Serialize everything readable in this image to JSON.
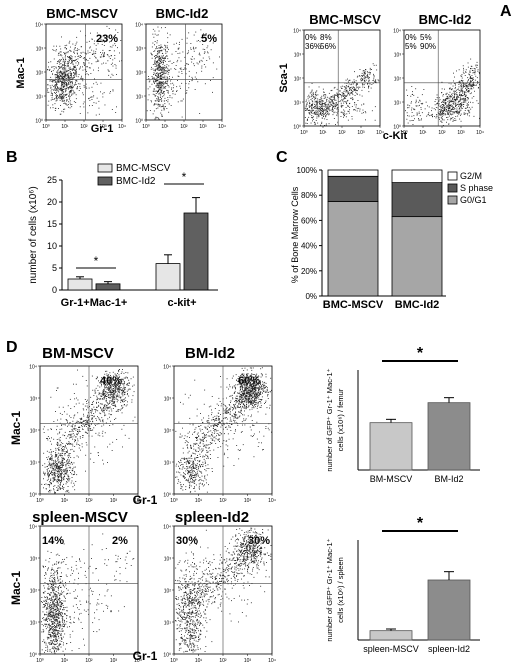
{
  "panelA": {
    "letter": "A",
    "left_pair": {
      "titles": [
        "BMC-MSCV",
        "BMC-Id2"
      ],
      "percents": [
        "23%",
        "5%"
      ],
      "ylabel": "Mac-1",
      "xlabel": "Gr-1"
    },
    "right_pair": {
      "titles": [
        "BMC-MSCV",
        "BMC-Id2"
      ],
      "quadrants": [
        [
          "0%",
          "8%",
          "36%",
          "56%"
        ],
        [
          "0%",
          "5%",
          "5%",
          "90%"
        ]
      ],
      "ylabel": "Sca-1",
      "xlabel": "c-Kit"
    },
    "log_ticks": [
      "10⁰",
      "10¹",
      "10²",
      "10³",
      "10⁴"
    ]
  },
  "panelB": {
    "letter": "B",
    "chart_data": {
      "type": "bar",
      "categories": [
        "Gr-1+Mac-1+",
        "c-kit+"
      ],
      "series": [
        {
          "name": "BMC-MSCV",
          "values": [
            2.5,
            6.0
          ],
          "errors": [
            0.5,
            2.0
          ],
          "color": "#e6e6e6"
        },
        {
          "name": "BMC-Id2",
          "values": [
            1.4,
            17.5
          ],
          "errors": [
            0.5,
            3.5
          ],
          "color": "#606060"
        }
      ],
      "ylabel": "number of cells (x10⁶)",
      "ylim": [
        0,
        25
      ],
      "yticks": [
        "0",
        "5",
        "10",
        "15",
        "20",
        "25"
      ],
      "significance": [
        "*",
        "*"
      ]
    }
  },
  "panelC": {
    "letter": "C",
    "chart_data": {
      "type": "bar",
      "stacked": true,
      "categories": [
        "BMC-MSCV",
        "BMC-Id2"
      ],
      "series": [
        {
          "name": "G0/G1",
          "values": [
            75,
            63
          ],
          "color": "#a6a6a6"
        },
        {
          "name": "S phase",
          "values": [
            20,
            27
          ],
          "color": "#5a5a5a"
        },
        {
          "name": "G2/M",
          "values": [
            5,
            10
          ],
          "color": "#ffffff"
        }
      ],
      "legend_order": [
        "G2/M",
        "S phase",
        "G0/G1"
      ],
      "ylabel": "% of Bone Marrow Cells",
      "ylim": [
        0,
        100
      ],
      "yticks": [
        "0%",
        "20%",
        "40%",
        "60%",
        "80%",
        "100%"
      ]
    }
  },
  "panelD": {
    "letter": "D",
    "flow_top": {
      "titles": [
        "BM-MSCV",
        "BM-Id2"
      ],
      "quadrants": [
        [
          "",
          "40%"
        ],
        [
          "",
          "60%"
        ]
      ],
      "ylabel": "Mac-1",
      "xlabel": "Gr-1"
    },
    "flow_bottom": {
      "titles": [
        "spleen-MSCV",
        "spleen-Id2"
      ],
      "quadrants": [
        [
          "14%",
          "2%"
        ],
        [
          "30%",
          "30%"
        ]
      ],
      "ylabel": "Mac-1",
      "xlabel": "Gr-1"
    },
    "chart_top": {
      "type": "bar",
      "categories": [
        "BM-MSCV",
        "BM-Id2"
      ],
      "values": [
        14.2,
        20.2
      ],
      "errors": [
        1.0,
        1.5
      ],
      "colors": [
        "#c8c8c8",
        "#8c8c8c"
      ],
      "ylabel_line1": "number of GFP⁺ Gr-1⁺ Mac-1⁺",
      "ylabel_line2": "cells (x10⁶) / femur",
      "ylim": [
        0,
        30
      ],
      "significance": "*"
    },
    "chart_bottom": {
      "type": "bar",
      "categories": [
        "spleen-MSCV",
        "spleen-Id2"
      ],
      "values": [
        2.8,
        18.0
      ],
      "errors": [
        0.5,
        2.5
      ],
      "colors": [
        "#c8c8c8",
        "#8c8c8c"
      ],
      "ylabel_line1": "number of GFP⁺ Gr-1⁺ Mac-1⁺",
      "ylabel_line2": "cells (x10⁶) / spleen",
      "ylim": [
        0,
        30
      ],
      "significance": "*"
    }
  }
}
